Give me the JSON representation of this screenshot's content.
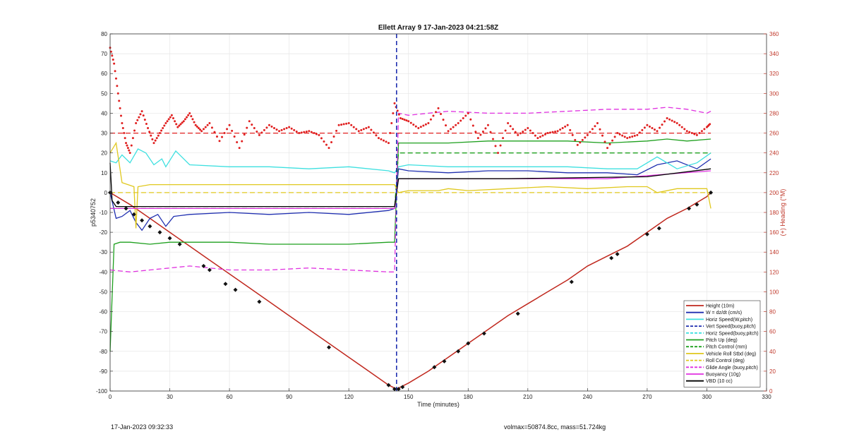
{
  "chart_data": {
    "type": "line",
    "title": "Ellett Array 9 17-Jan-2023 04:21:58Z",
    "xlabel": "Time (minutes)",
    "ylabel": "p5340752",
    "ylabel_right": "(+) Heading (°M)",
    "xlim": [
      0,
      330
    ],
    "ylim": [
      -100,
      80
    ],
    "ylim_right": [
      0,
      360
    ],
    "xticks": [
      0,
      30,
      60,
      90,
      120,
      150,
      180,
      210,
      240,
      270,
      300,
      330
    ],
    "yticks": [
      -100,
      -90,
      -80,
      -70,
      -60,
      -50,
      -40,
      -30,
      -20,
      -10,
      0,
      10,
      20,
      30,
      40,
      50,
      60,
      70,
      80
    ],
    "yticks_right": [
      0,
      20,
      40,
      60,
      80,
      100,
      120,
      140,
      160,
      180,
      200,
      220,
      240,
      260,
      280,
      300,
      320,
      340,
      360
    ],
    "grid": true,
    "legend_position": "bottom-right",
    "apogee_marker_x": 144,
    "legend": [
      {
        "label": "Height (10m)",
        "color": "#c0281e",
        "style": "solid"
      },
      {
        "label": "W = dz/dt (cm/s)",
        "color": "#1f2fb0",
        "style": "solid"
      },
      {
        "label": "Horiz Speed(W,pitch)",
        "color": "#3ee0e0",
        "style": "solid"
      },
      {
        "label": "Vert Speed(buoy,pitch)",
        "color": "#1f2fb0",
        "style": "dashed"
      },
      {
        "label": "Horiz Speed(buoy,pitch)",
        "color": "#3ee0e0",
        "style": "dashed"
      },
      {
        "label": "Pitch Up (deg)",
        "color": "#1fa01f",
        "style": "solid"
      },
      {
        "label": "Pitch Control (mm)",
        "color": "#1fa01f",
        "style": "dashed"
      },
      {
        "label": "Vehicle Roll Stbd (deg)",
        "color": "#e0c81e",
        "style": "solid"
      },
      {
        "label": "Roll Control (deg)",
        "color": "#e0c81e",
        "style": "dashed"
      },
      {
        "label": "Glide Angle (buoy,pitch)",
        "color": "#e030e0",
        "style": "dashed"
      },
      {
        "label": "Buoyancy (10g)",
        "color": "#e030e0",
        "style": "solid"
      },
      {
        "label": "VBD (10 cc)",
        "color": "#000000",
        "style": "solid"
      }
    ],
    "series": [
      {
        "name": "Height (10m)",
        "color": "#c0281e",
        "dash": "",
        "x": [
          0,
          10,
          20,
          30,
          40,
          50,
          60,
          70,
          80,
          90,
          100,
          110,
          120,
          130,
          140,
          144,
          150,
          160,
          170,
          180,
          190,
          200,
          210,
          220,
          230,
          240,
          250,
          260,
          270,
          280,
          290,
          300,
          302
        ],
        "y": [
          0,
          -6,
          -13,
          -20,
          -27,
          -34,
          -41,
          -48,
          -55,
          -62,
          -69,
          -76,
          -83,
          -90,
          -97,
          -99,
          -96,
          -90,
          -83,
          -76,
          -69,
          -62,
          -56,
          -50,
          -44,
          -37,
          -32,
          -27,
          -20,
          -13,
          -8,
          -2,
          0
        ]
      },
      {
        "name": "W = dz/dt (cm/s)",
        "color": "#1f2fb0",
        "dash": "",
        "x": [
          0,
          3,
          6,
          10,
          13,
          16,
          20,
          24,
          28,
          32,
          40,
          60,
          80,
          100,
          120,
          140,
          143,
          145,
          150,
          170,
          190,
          210,
          230,
          250,
          265,
          275,
          285,
          295,
          302
        ],
        "y": [
          0,
          -13,
          -12,
          -9,
          -15,
          -19,
          -13,
          -11,
          -17,
          -12,
          -11,
          -10,
          -11,
          -10,
          -11,
          -9,
          -8,
          12,
          11,
          10,
          11,
          11,
          10,
          10,
          9,
          14,
          16,
          12,
          17
        ]
      },
      {
        "name": "Horiz Speed(W,pitch)",
        "color": "#3ee0e0",
        "dash": "",
        "x": [
          0,
          3,
          6,
          10,
          14,
          18,
          22,
          26,
          28,
          33,
          40,
          60,
          80,
          100,
          120,
          140,
          143,
          145,
          150,
          170,
          190,
          210,
          230,
          250,
          265,
          275,
          285,
          295,
          302
        ],
        "y": [
          16,
          15,
          19,
          15,
          22,
          20,
          14,
          17,
          13,
          21,
          14,
          13,
          13,
          12,
          13,
          11,
          10,
          13,
          14,
          13,
          13,
          13,
          13,
          12,
          12,
          18,
          12,
          15,
          20
        ]
      },
      {
        "name": "Pitch Up (deg)",
        "color": "#1fa01f",
        "dash": "",
        "x": [
          0,
          2,
          5,
          10,
          20,
          30,
          40,
          60,
          80,
          100,
          120,
          140,
          143,
          145,
          150,
          170,
          190,
          210,
          230,
          250,
          270,
          280,
          290,
          302
        ],
        "y": [
          -80,
          -26,
          -25,
          -25,
          -26,
          -25,
          -25,
          -25,
          -26,
          -26,
          -26,
          -25,
          -25,
          25,
          25,
          25,
          26,
          26,
          26,
          25,
          26,
          27,
          26,
          27
        ]
      },
      {
        "name": "Pitch Control (mm)",
        "color": "#1fa01f",
        "dash": "7,4",
        "x": [
          0,
          143,
          145,
          302
        ],
        "y": [
          -8,
          -8,
          20,
          20
        ]
      },
      {
        "name": "Vehicle Roll Stbd (deg)",
        "color": "#e0c81e",
        "dash": "",
        "x": [
          0,
          3,
          6,
          12,
          13,
          14,
          20,
          30,
          60,
          90,
          110,
          130,
          143,
          145,
          150,
          165,
          170,
          180,
          200,
          220,
          240,
          260,
          270,
          275,
          285,
          300,
          302
        ],
        "y": [
          20,
          25,
          5,
          3,
          -18,
          3,
          4,
          4,
          4,
          4,
          4,
          4,
          4,
          0,
          1,
          1,
          2,
          1,
          2,
          3,
          2,
          3,
          3,
          0,
          2,
          2,
          -8
        ]
      },
      {
        "name": "Roll Control (deg)",
        "color": "#e0c81e",
        "dash": "7,4",
        "x": [
          0,
          143,
          145,
          302
        ],
        "y": [
          0,
          0,
          0,
          0
        ]
      },
      {
        "name": "Glide Angle (buoy,pitch)",
        "color": "#e030e0",
        "dash": "7,4",
        "x": [
          0,
          10,
          20,
          30,
          40,
          60,
          80,
          100,
          120,
          140,
          143,
          145,
          150,
          170,
          190,
          210,
          230,
          250,
          270,
          280,
          290,
          300,
          302
        ],
        "y": [
          -39,
          -40,
          -39,
          -38,
          -37,
          -39,
          -39,
          -38,
          -39,
          -40,
          -40,
          40,
          39,
          41,
          40,
          40,
          41,
          42,
          42,
          43,
          42,
          40,
          41
        ]
      },
      {
        "name": "Buoyancy (10g)",
        "color": "#e030e0",
        "dash": "",
        "x": [
          0,
          143,
          145,
          200,
          250,
          302
        ],
        "y": [
          -8,
          -8,
          7,
          7,
          7,
          11
        ]
      },
      {
        "name": "VBD (10 cc)",
        "color": "#000000",
        "dash": "",
        "x": [
          0,
          1,
          3,
          143,
          145,
          200,
          270,
          302
        ],
        "y": [
          15,
          -4,
          -7,
          -7,
          7,
          7,
          8,
          12
        ]
      },
      {
        "name": "Heading ref",
        "color": "#e02020",
        "dash": "7,4",
        "axis": "right",
        "x": [
          0,
          302
        ],
        "y": [
          260,
          260
        ]
      },
      {
        "name": "Heading",
        "color": "#e02020",
        "dash": "1,3",
        "axis": "right",
        "dotted": true,
        "x": [
          0,
          2,
          4,
          6,
          8,
          10,
          13,
          16,
          19,
          22,
          25,
          28,
          31,
          34,
          37,
          40,
          43,
          46,
          50,
          55,
          60,
          65,
          70,
          75,
          80,
          85,
          90,
          95,
          100,
          105,
          110,
          115,
          120,
          125,
          130,
          135,
          140,
          143,
          146,
          150,
          155,
          160,
          165,
          170,
          175,
          180,
          185,
          190,
          195,
          200,
          205,
          210,
          215,
          220,
          225,
          230,
          235,
          240,
          245,
          250,
          255,
          260,
          265,
          270,
          275,
          280,
          285,
          290,
          295,
          300,
          302
        ],
        "y": [
          346,
          330,
          300,
          270,
          250,
          240,
          270,
          282,
          265,
          250,
          260,
          270,
          278,
          266,
          272,
          280,
          268,
          262,
          270,
          252,
          268,
          245,
          272,
          258,
          268,
          262,
          266,
          260,
          262,
          258,
          245,
          268,
          270,
          262,
          266,
          255,
          250,
          290,
          275,
          272,
          265,
          270,
          285,
          262,
          270,
          280,
          255,
          268,
          240,
          270,
          258,
          265,
          255,
          260,
          262,
          268,
          248,
          258,
          270,
          245,
          260,
          255,
          258,
          268,
          262,
          275,
          270,
          262,
          258,
          266,
          270
        ]
      }
    ],
    "marker_points": {
      "x": [
        0,
        4,
        8,
        12,
        16,
        20,
        25,
        30,
        35,
        47,
        50,
        58,
        63,
        75,
        110,
        140,
        143,
        145,
        147,
        163,
        168,
        175,
        180,
        188,
        205,
        232,
        252,
        255,
        270,
        276,
        291,
        295,
        302
      ],
      "y": [
        0,
        -5,
        -8,
        -11,
        -14,
        -17,
        -20,
        -23,
        -26,
        -37,
        -39,
        -46,
        -49,
        -55,
        -78,
        -97,
        -99,
        -99,
        -98,
        -88,
        -85,
        -80,
        -76,
        -71,
        -61,
        -45,
        -33,
        -31,
        -21,
        -18,
        -8,
        -6,
        0
      ]
    }
  },
  "footer": {
    "timestamp": "17-Jan-2023 09:32:33",
    "info": "volmax=50874.8cc, mass=51.724kg"
  }
}
